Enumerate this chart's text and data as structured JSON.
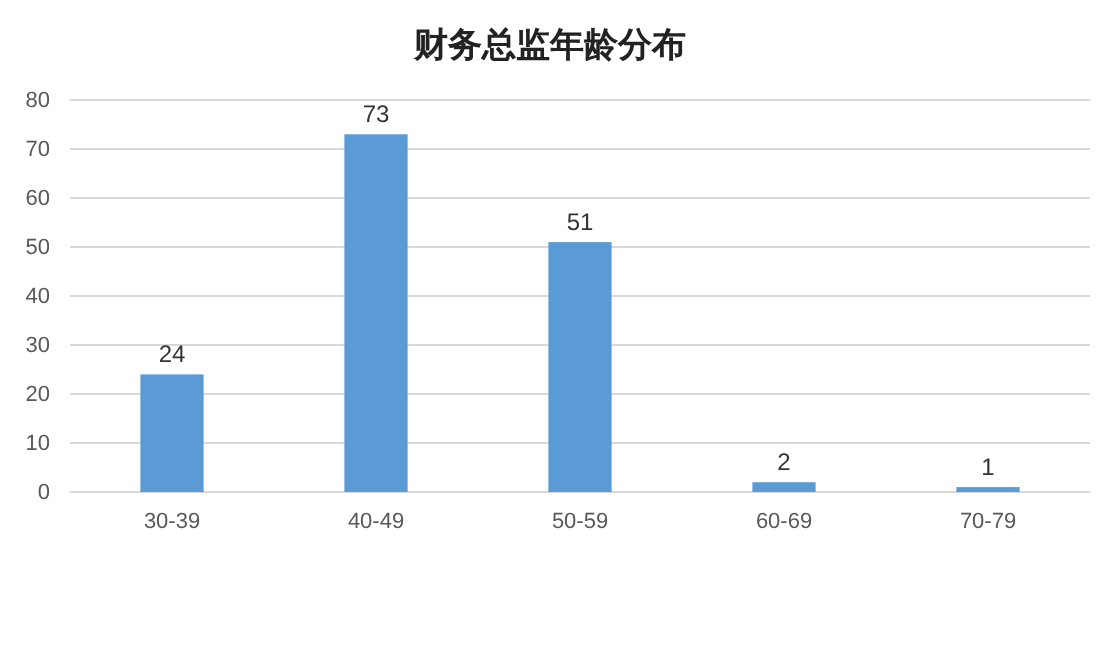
{
  "chart_data": {
    "type": "bar",
    "title": "财务总监年龄分布",
    "categories": [
      "30-39",
      "40-49",
      "50-59",
      "60-69",
      "70-79"
    ],
    "values": [
      24,
      73,
      51,
      2,
      1
    ],
    "color": "#5b9bd5",
    "ylim": [
      0,
      80
    ],
    "yticks": [
      0,
      10,
      20,
      30,
      40,
      50,
      60,
      70,
      80
    ],
    "grid": "y",
    "data_labels": true
  }
}
